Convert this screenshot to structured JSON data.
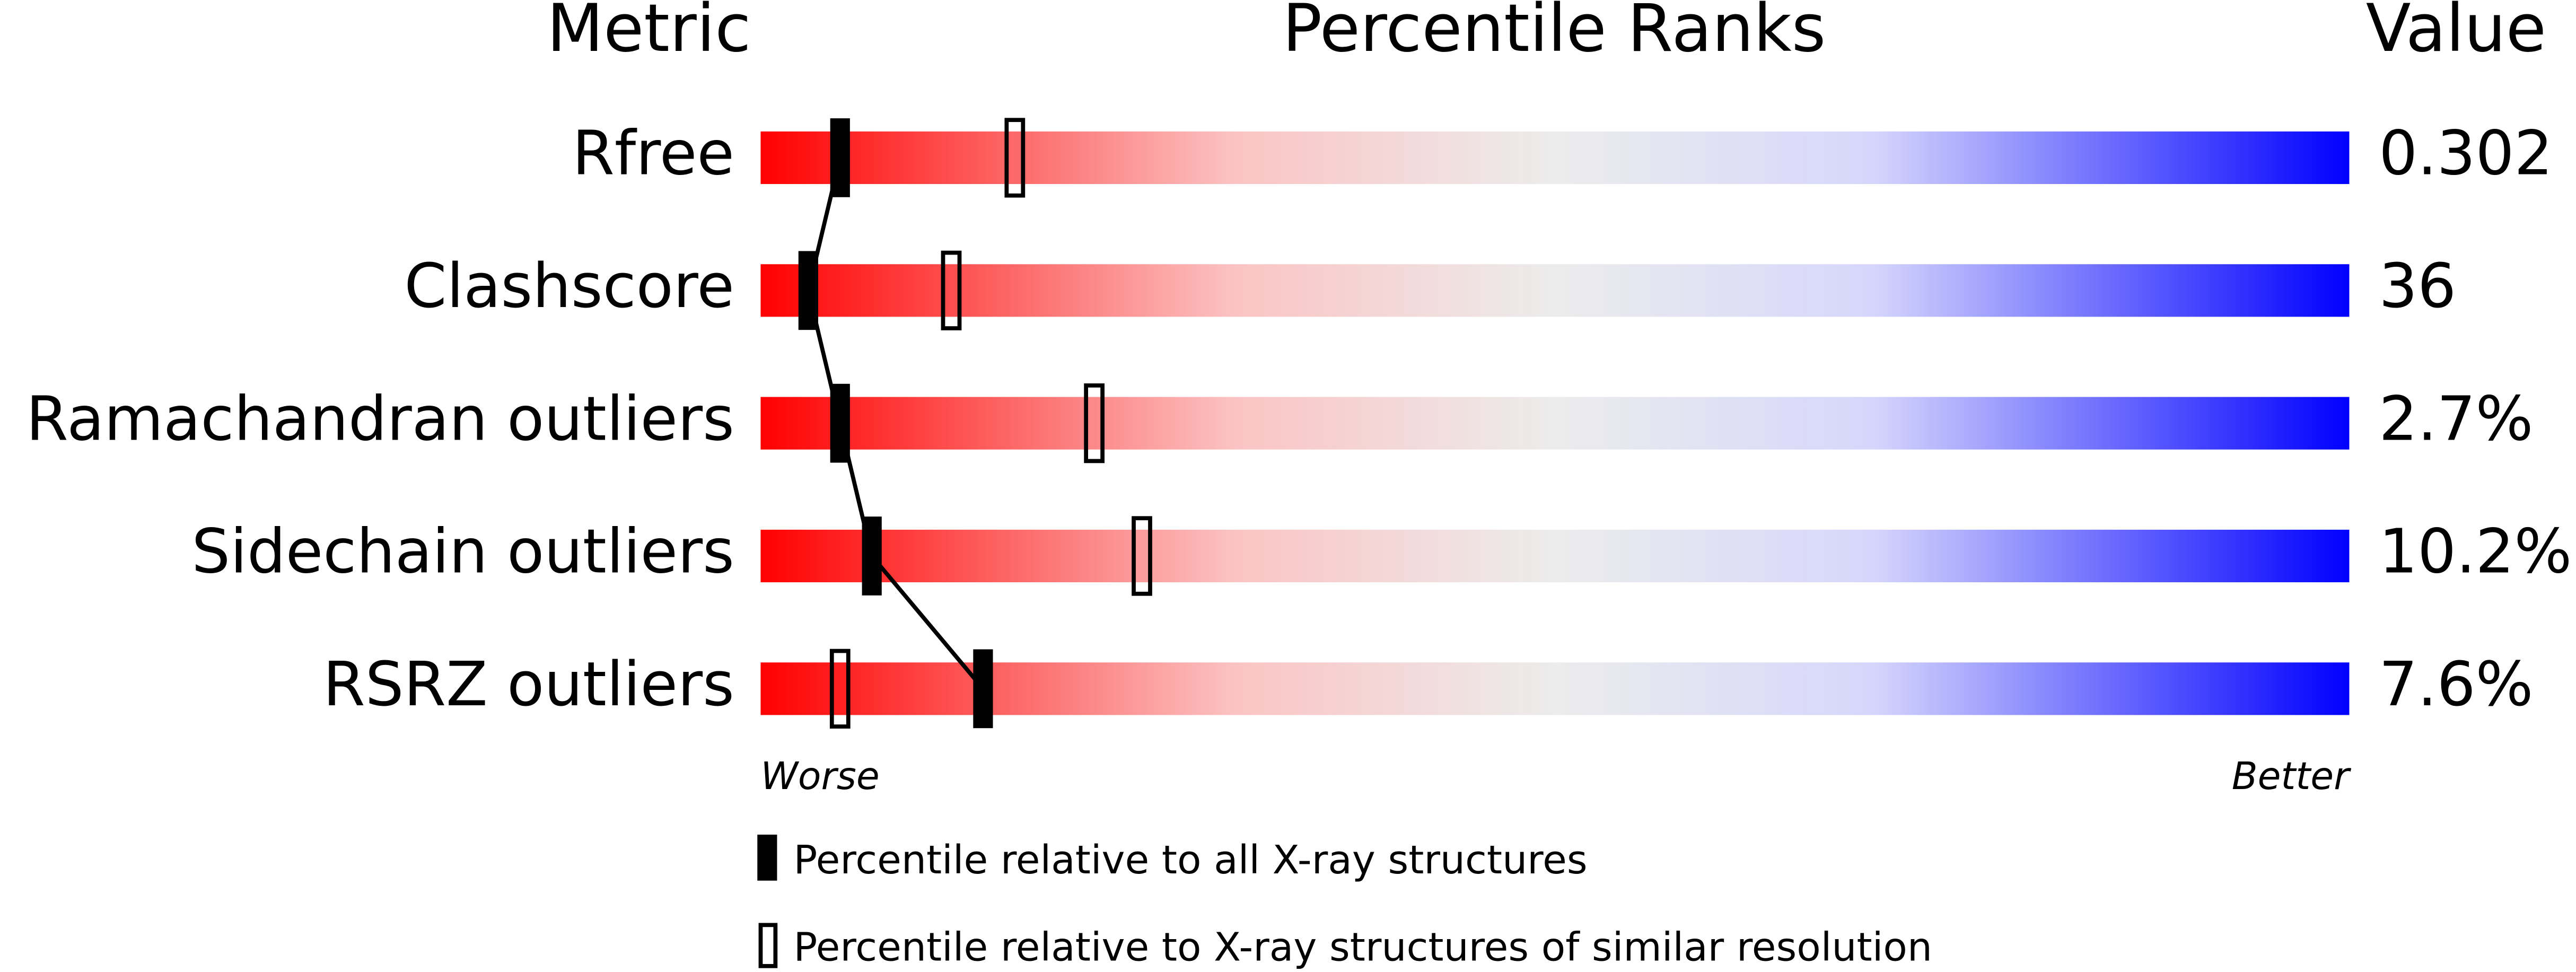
{
  "chart_data": {
    "type": "percentile",
    "headers": {
      "metric": "Metric",
      "ranks": "Percentile Ranks",
      "value": "Value"
    },
    "categories": [
      "Rfree",
      "Clashscore",
      "Ramachandran outliers",
      "Sidechain outliers",
      "RSRZ outliers"
    ],
    "metric_values": [
      "0.302",
      "36",
      "2.7%",
      "10.2%",
      "7.6%"
    ],
    "series": [
      {
        "name": "Percentile relative to all X-ray structures",
        "color": "#000000",
        "values": [
          5,
          3,
          5,
          7,
          14
        ]
      },
      {
        "name": "Percentile relative to X-ray structures of similar resolution",
        "color": "#000000",
        "values": [
          16,
          12,
          21,
          24,
          5
        ]
      }
    ],
    "xlim": [
      0,
      100
    ],
    "axis_ends": [
      "Worse",
      "Better"
    ]
  }
}
